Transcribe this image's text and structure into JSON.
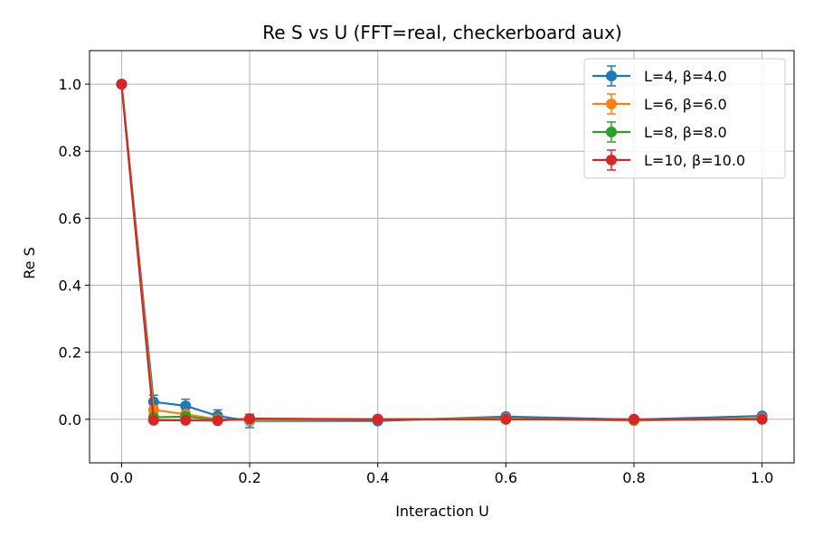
{
  "chart_data": {
    "type": "line",
    "title": "Re S vs U (FFT=real, checkerboard aux)",
    "xlabel": "Interaction U",
    "ylabel": "Re S",
    "xlim": [
      -0.05,
      1.05
    ],
    "ylim": [
      -0.13,
      1.1
    ],
    "xticks": [
      0.0,
      0.2,
      0.4,
      0.6,
      0.8,
      1.0
    ],
    "yticks": [
      0.0,
      0.2,
      0.4,
      0.6,
      0.8,
      1.0
    ],
    "xtick_labels": [
      "0.0",
      "0.2",
      "0.4",
      "0.6",
      "0.8",
      "1.0"
    ],
    "ytick_labels": [
      "0.0",
      "0.2",
      "0.4",
      "0.6",
      "0.8",
      "1.0"
    ],
    "grid": true,
    "legend_position": "top-right",
    "x": [
      0.0,
      0.05,
      0.1,
      0.15,
      0.2,
      0.4,
      0.6,
      0.8,
      1.0
    ],
    "series": [
      {
        "name": "L=4, β=4.0",
        "color": "#1f77b4",
        "values": [
          1.0,
          0.052,
          0.04,
          0.01,
          -0.005,
          -0.005,
          0.008,
          -0.001,
          0.01
        ],
        "errors": [
          0.0,
          0.02,
          0.02,
          0.018,
          0.02,
          0.008,
          0.005,
          0.004,
          0.005
        ]
      },
      {
        "name": "L=6, β=6.0",
        "color": "#ff7f0e",
        "values": [
          1.0,
          0.028,
          0.015,
          0.0,
          -0.003,
          0.0,
          0.002,
          -0.004,
          0.003
        ],
        "errors": [
          0.0,
          0.01,
          0.01,
          0.01,
          0.01,
          0.005,
          0.004,
          0.004,
          0.004
        ]
      },
      {
        "name": "L=8, β=8.0",
        "color": "#2ca02c",
        "values": [
          1.0,
          0.006,
          0.008,
          -0.002,
          0.001,
          0.0,
          0.0,
          -0.002,
          0.0
        ],
        "errors": [
          0.0,
          0.006,
          0.006,
          0.006,
          0.006,
          0.004,
          0.003,
          0.003,
          0.003
        ]
      },
      {
        "name": "L=10, β=10.0",
        "color": "#d62728",
        "values": [
          1.0,
          -0.003,
          -0.003,
          -0.004,
          0.002,
          0.0,
          0.0,
          0.0,
          0.0
        ],
        "errors": [
          0.0,
          0.004,
          0.004,
          0.004,
          0.004,
          0.003,
          0.002,
          0.002,
          0.002
        ]
      }
    ]
  }
}
